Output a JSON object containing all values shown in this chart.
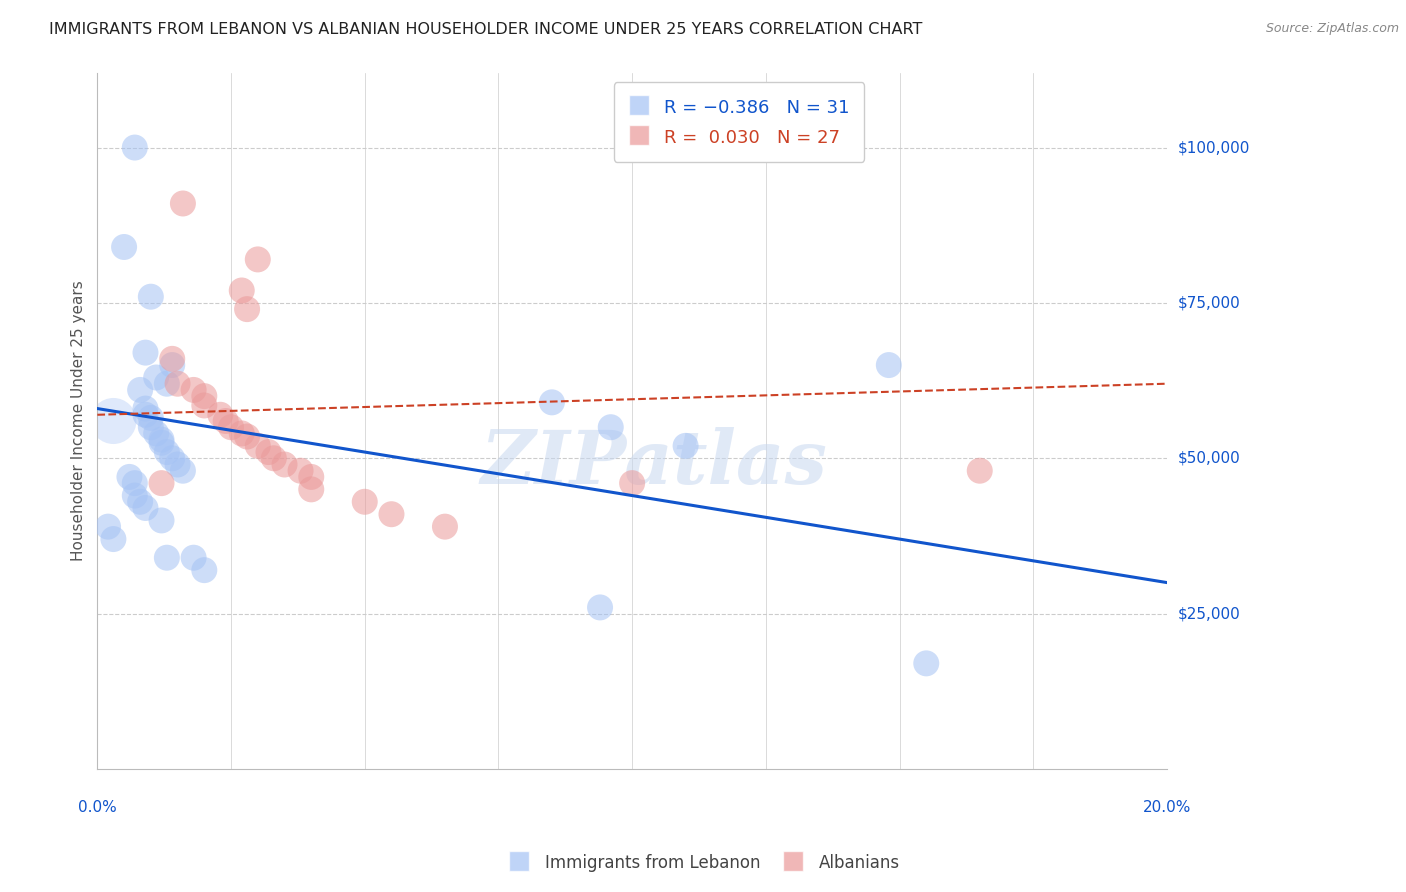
{
  "title": "IMMIGRANTS FROM LEBANON VS ALBANIAN HOUSEHOLDER INCOME UNDER 25 YEARS CORRELATION CHART",
  "source": "Source: ZipAtlas.com",
  "ylabel": "Householder Income Under 25 years",
  "ytick_labels": [
    "$25,000",
    "$50,000",
    "$75,000",
    "$100,000"
  ],
  "ytick_values": [
    25000,
    50000,
    75000,
    100000
  ],
  "ylim": [
    0,
    112000
  ],
  "xlim": [
    0.0,
    0.2
  ],
  "legend_label1": "Immigrants from Lebanon",
  "legend_label2": "Albanians",
  "watermark": "ZIPatlas",
  "blue_scatter": [
    [
      0.007,
      100000
    ],
    [
      0.005,
      84000
    ],
    [
      0.01,
      76000
    ],
    [
      0.009,
      67000
    ],
    [
      0.011,
      63000
    ],
    [
      0.013,
      62000
    ],
    [
      0.014,
      65000
    ],
    [
      0.008,
      61000
    ],
    [
      0.009,
      58000
    ],
    [
      0.009,
      57000
    ],
    [
      0.01,
      56500
    ],
    [
      0.01,
      55000
    ],
    [
      0.011,
      54000
    ],
    [
      0.012,
      53000
    ],
    [
      0.012,
      52500
    ],
    [
      0.013,
      51000
    ],
    [
      0.014,
      50000
    ],
    [
      0.015,
      49000
    ],
    [
      0.016,
      48000
    ],
    [
      0.006,
      47000
    ],
    [
      0.007,
      46000
    ],
    [
      0.007,
      44000
    ],
    [
      0.008,
      43000
    ],
    [
      0.009,
      42000
    ],
    [
      0.012,
      40000
    ],
    [
      0.003,
      37000
    ],
    [
      0.013,
      34000
    ],
    [
      0.018,
      34000
    ],
    [
      0.02,
      32000
    ],
    [
      0.096,
      55000
    ],
    [
      0.11,
      52000
    ],
    [
      0.002,
      39000
    ],
    [
      0.085,
      59000
    ],
    [
      0.148,
      65000
    ],
    [
      0.094,
      26000
    ],
    [
      0.155,
      17000
    ]
  ],
  "pink_scatter": [
    [
      0.016,
      91000
    ],
    [
      0.03,
      82000
    ],
    [
      0.027,
      77000
    ],
    [
      0.028,
      74000
    ],
    [
      0.014,
      66000
    ],
    [
      0.015,
      62000
    ],
    [
      0.018,
      61000
    ],
    [
      0.02,
      60000
    ],
    [
      0.02,
      58500
    ],
    [
      0.023,
      57000
    ],
    [
      0.024,
      56000
    ],
    [
      0.025,
      55000
    ],
    [
      0.027,
      54000
    ],
    [
      0.028,
      53500
    ],
    [
      0.03,
      52000
    ],
    [
      0.032,
      51000
    ],
    [
      0.033,
      50000
    ],
    [
      0.035,
      49000
    ],
    [
      0.038,
      48000
    ],
    [
      0.04,
      47000
    ],
    [
      0.04,
      45000
    ],
    [
      0.05,
      43000
    ],
    [
      0.055,
      41000
    ],
    [
      0.065,
      39000
    ],
    [
      0.012,
      46000
    ],
    [
      0.1,
      46000
    ],
    [
      0.165,
      48000
    ]
  ],
  "blue_line_x": [
    0.0,
    0.2
  ],
  "blue_line_y": [
    58000,
    30000
  ],
  "pink_line_x": [
    0.0,
    0.2
  ],
  "pink_line_y": [
    57000,
    62000
  ],
  "blue_color": "#a4c2f4",
  "pink_color": "#ea9999",
  "blue_line_color": "#1155cc",
  "pink_line_color": "#cc4125",
  "grid_color": "#cccccc",
  "axis_label_color": "#1155cc",
  "background_color": "#ffffff"
}
